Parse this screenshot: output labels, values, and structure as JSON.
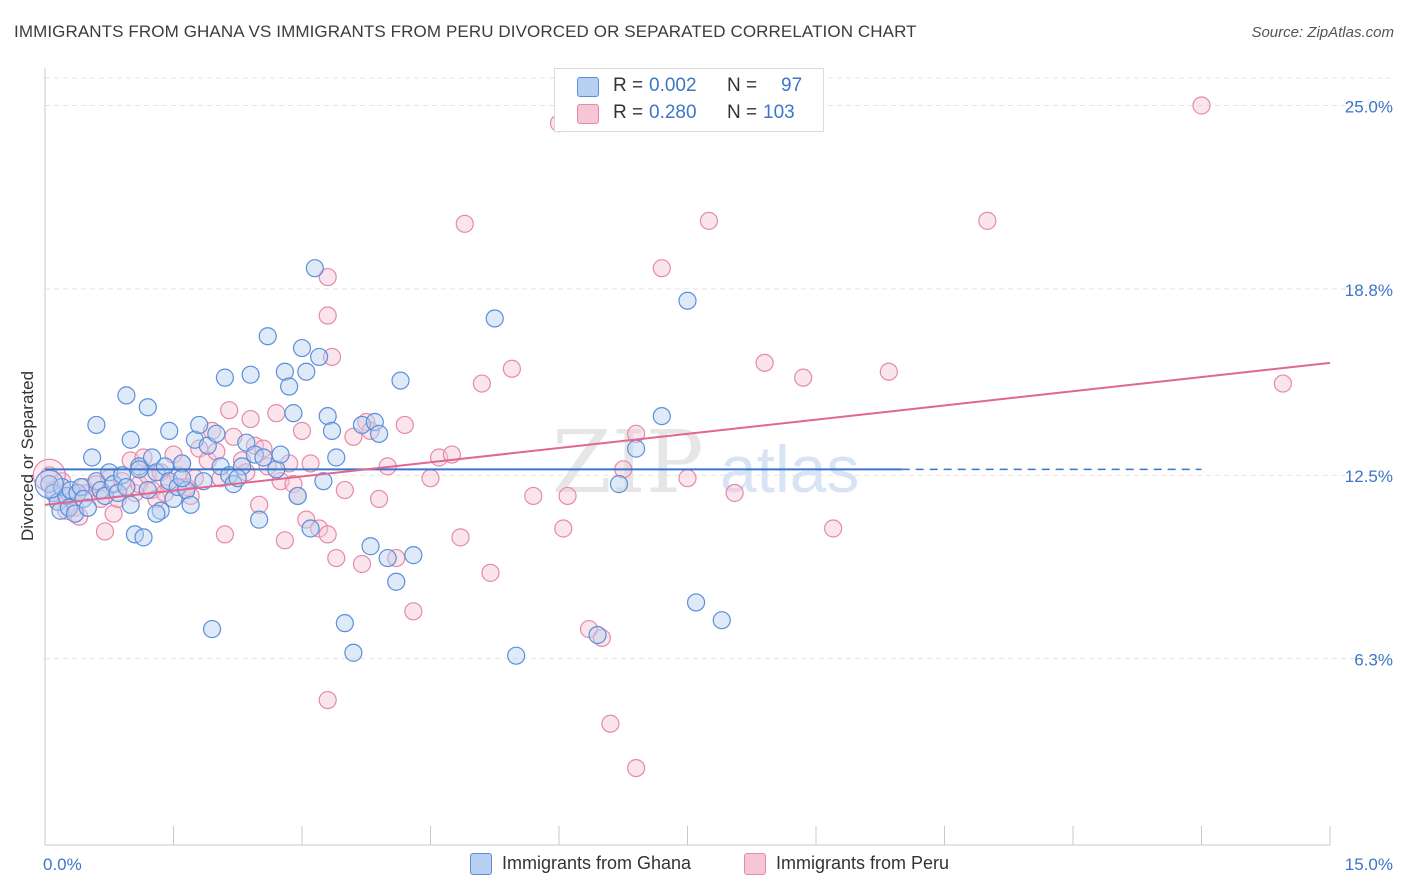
{
  "title": "IMMIGRANTS FROM GHANA VS IMMIGRANTS FROM PERU DIVORCED OR SEPARATED CORRELATION CHART",
  "source": "Source: ZipAtlas.com",
  "watermark": {
    "zip": "ZIP",
    "atlas": "atlas"
  },
  "legend": {
    "ghana": {
      "r_label": "R =",
      "r_value": "0.002",
      "n_label": "N =",
      "n_value": "97"
    },
    "peru": {
      "r_label": "R =",
      "r_value": "0.280",
      "n_label": "N =",
      "n_value": "103"
    }
  },
  "colors": {
    "ghana_fill": "#b8d0f2",
    "ghana_stroke": "#5b8fd9",
    "ghana_line": "#3a76cc",
    "peru_fill": "#f6c6d6",
    "peru_stroke": "#e58aa9",
    "peru_line": "#e0678f",
    "tick_label": "#3d75c8",
    "grid": "#e3e3e3"
  },
  "chart_data": {
    "type": "scatter",
    "title": "IMMIGRANTS FROM GHANA VS IMMIGRANTS FROM PERU DIVORCED OR SEPARATED CORRELATION CHART",
    "xlabel": "",
    "ylabel": "Divorced or Separated",
    "xlim": [
      0,
      15
    ],
    "ylim": [
      0,
      26.2
    ],
    "x_tick_labels": [
      "0.0%",
      "15.0%"
    ],
    "y_ticks": [
      6.3,
      12.5,
      18.8,
      25.0
    ],
    "y_tick_labels": [
      "6.3%",
      "12.5%",
      "18.8%",
      "25.0%"
    ],
    "grid": "horizontal dashed",
    "legend_position": "bottom",
    "series": [
      {
        "name": "Immigrants from Ghana",
        "trend": {
          "x": [
            0.0,
            10.0
          ],
          "y": [
            12.7,
            12.7
          ],
          "dashed_to_x": 13.5
        },
        "points": [
          [
            0.05,
            12.2
          ],
          [
            0.1,
            11.9
          ],
          [
            0.15,
            11.6
          ],
          [
            0.18,
            11.3
          ],
          [
            0.2,
            12.1
          ],
          [
            0.25,
            11.8
          ],
          [
            0.28,
            11.4
          ],
          [
            0.3,
            12.0
          ],
          [
            0.35,
            11.2
          ],
          [
            0.38,
            11.9
          ],
          [
            0.42,
            12.1
          ],
          [
            0.45,
            11.7
          ],
          [
            0.5,
            11.4
          ],
          [
            0.55,
            13.1
          ],
          [
            0.6,
            12.3
          ],
          [
            0.65,
            12.0
          ],
          [
            0.7,
            11.8
          ],
          [
            0.75,
            12.6
          ],
          [
            0.8,
            12.2
          ],
          [
            0.85,
            11.9
          ],
          [
            0.9,
            12.5
          ],
          [
            0.95,
            12.1
          ],
          [
            1.0,
            11.5
          ],
          [
            1.05,
            10.5
          ],
          [
            1.1,
            12.8
          ],
          [
            1.15,
            10.4
          ],
          [
            1.2,
            12.0
          ],
          [
            1.25,
            13.1
          ],
          [
            1.3,
            12.6
          ],
          [
            1.35,
            11.3
          ],
          [
            1.4,
            12.8
          ],
          [
            1.45,
            12.3
          ],
          [
            1.5,
            11.7
          ],
          [
            1.55,
            12.1
          ],
          [
            1.6,
            12.9
          ],
          [
            1.65,
            12.0
          ],
          [
            1.7,
            11.5
          ],
          [
            1.75,
            13.7
          ],
          [
            1.8,
            14.2
          ],
          [
            1.85,
            12.3
          ],
          [
            1.9,
            13.5
          ],
          [
            2.0,
            13.9
          ],
          [
            2.05,
            12.8
          ],
          [
            2.1,
            15.8
          ],
          [
            2.15,
            12.5
          ],
          [
            2.2,
            12.2
          ],
          [
            2.3,
            12.8
          ],
          [
            2.35,
            13.6
          ],
          [
            2.4,
            15.9
          ],
          [
            2.45,
            13.2
          ],
          [
            2.5,
            11.0
          ],
          [
            2.55,
            13.1
          ],
          [
            2.6,
            17.2
          ],
          [
            2.7,
            12.7
          ],
          [
            2.75,
            13.2
          ],
          [
            2.8,
            16.0
          ],
          [
            2.85,
            15.5
          ],
          [
            2.9,
            14.6
          ],
          [
            2.95,
            11.8
          ],
          [
            3.0,
            16.8
          ],
          [
            3.05,
            16.0
          ],
          [
            3.1,
            10.7
          ],
          [
            3.15,
            19.5
          ],
          [
            3.2,
            16.5
          ],
          [
            3.25,
            12.3
          ],
          [
            3.3,
            14.5
          ],
          [
            3.35,
            14.0
          ],
          [
            3.4,
            13.1
          ],
          [
            3.5,
            7.5
          ],
          [
            3.6,
            6.5
          ],
          [
            3.7,
            14.2
          ],
          [
            3.8,
            10.1
          ],
          [
            3.85,
            14.3
          ],
          [
            3.9,
            13.9
          ],
          [
            4.0,
            9.7
          ],
          [
            4.1,
            8.9
          ],
          [
            4.15,
            15.7
          ],
          [
            4.3,
            9.8
          ],
          [
            5.25,
            17.8
          ],
          [
            5.5,
            6.4
          ],
          [
            6.45,
            7.1
          ],
          [
            6.7,
            12.2
          ],
          [
            6.9,
            13.4
          ],
          [
            7.2,
            14.5
          ],
          [
            7.5,
            18.4
          ],
          [
            7.6,
            8.2
          ],
          [
            7.9,
            7.6
          ],
          [
            0.6,
            14.2
          ],
          [
            0.95,
            15.2
          ],
          [
            1.2,
            14.8
          ],
          [
            1.0,
            13.7
          ],
          [
            1.1,
            12.7
          ],
          [
            1.3,
            11.2
          ],
          [
            1.45,
            14.0
          ],
          [
            1.6,
            12.4
          ],
          [
            2.25,
            12.4
          ],
          [
            1.95,
            7.3
          ]
        ]
      },
      {
        "name": "Immigrants from Peru",
        "trend": {
          "x": [
            0.0,
            15.0
          ],
          "y": [
            11.5,
            16.3
          ]
        },
        "points": [
          [
            0.05,
            12.5
          ],
          [
            0.1,
            12.0
          ],
          [
            0.15,
            11.6
          ],
          [
            0.2,
            12.3
          ],
          [
            0.25,
            11.3
          ],
          [
            0.3,
            11.8
          ],
          [
            0.35,
            11.4
          ],
          [
            0.4,
            11.1
          ],
          [
            0.45,
            12.1
          ],
          [
            0.5,
            11.9
          ],
          [
            0.6,
            12.2
          ],
          [
            0.65,
            11.7
          ],
          [
            0.7,
            10.6
          ],
          [
            0.75,
            12.4
          ],
          [
            0.8,
            11.2
          ],
          [
            0.85,
            11.7
          ],
          [
            0.9,
            12.3
          ],
          [
            1.0,
            13.0
          ],
          [
            1.05,
            11.9
          ],
          [
            1.1,
            12.2
          ],
          [
            1.15,
            13.1
          ],
          [
            1.2,
            12.5
          ],
          [
            1.25,
            12.0
          ],
          [
            1.3,
            11.7
          ],
          [
            1.35,
            12.6
          ],
          [
            1.4,
            11.9
          ],
          [
            1.45,
            12.2
          ],
          [
            1.5,
            13.2
          ],
          [
            1.55,
            12.5
          ],
          [
            1.6,
            12.9
          ],
          [
            1.65,
            12.1
          ],
          [
            1.7,
            11.8
          ],
          [
            1.75,
            12.4
          ],
          [
            1.8,
            13.4
          ],
          [
            1.9,
            13.0
          ],
          [
            1.95,
            14.0
          ],
          [
            2.0,
            13.3
          ],
          [
            2.05,
            12.4
          ],
          [
            2.1,
            10.5
          ],
          [
            2.15,
            14.7
          ],
          [
            2.2,
            13.8
          ],
          [
            2.3,
            13.0
          ],
          [
            2.35,
            12.6
          ],
          [
            2.4,
            14.4
          ],
          [
            2.45,
            13.5
          ],
          [
            2.5,
            11.5
          ],
          [
            2.55,
            13.4
          ],
          [
            2.6,
            12.8
          ],
          [
            2.7,
            14.6
          ],
          [
            2.75,
            12.3
          ],
          [
            2.8,
            10.3
          ],
          [
            2.85,
            12.9
          ],
          [
            2.9,
            12.2
          ],
          [
            2.95,
            11.8
          ],
          [
            3.0,
            14.0
          ],
          [
            3.05,
            11.0
          ],
          [
            3.1,
            12.9
          ],
          [
            3.2,
            10.7
          ],
          [
            3.3,
            10.5
          ],
          [
            3.35,
            16.5
          ],
          [
            3.4,
            9.7
          ],
          [
            3.5,
            12.0
          ],
          [
            3.6,
            13.8
          ],
          [
            3.7,
            9.5
          ],
          [
            3.75,
            14.3
          ],
          [
            3.8,
            14.0
          ],
          [
            3.9,
            11.7
          ],
          [
            4.0,
            12.8
          ],
          [
            4.1,
            9.7
          ],
          [
            4.2,
            14.2
          ],
          [
            4.3,
            7.9
          ],
          [
            4.5,
            12.4
          ],
          [
            4.6,
            13.1
          ],
          [
            4.75,
            13.2
          ],
          [
            4.85,
            10.4
          ],
          [
            4.9,
            21.0
          ],
          [
            5.1,
            15.6
          ],
          [
            5.2,
            9.2
          ],
          [
            5.45,
            16.1
          ],
          [
            5.7,
            11.8
          ],
          [
            6.0,
            24.4
          ],
          [
            6.05,
            10.7
          ],
          [
            6.1,
            11.8
          ],
          [
            6.35,
            7.3
          ],
          [
            6.5,
            7.0
          ],
          [
            6.6,
            4.1
          ],
          [
            6.75,
            12.7
          ],
          [
            6.9,
            2.6
          ],
          [
            7.2,
            19.5
          ],
          [
            7.5,
            12.4
          ],
          [
            7.75,
            21.1
          ],
          [
            8.05,
            11.9
          ],
          [
            8.4,
            16.3
          ],
          [
            8.85,
            15.8
          ],
          [
            9.2,
            10.7
          ],
          [
            9.85,
            16.0
          ],
          [
            11.0,
            21.1
          ],
          [
            13.5,
            25.0
          ],
          [
            14.45,
            15.6
          ],
          [
            3.3,
            4.9
          ],
          [
            3.3,
            19.2
          ],
          [
            3.3,
            17.9
          ],
          [
            6.9,
            13.9
          ]
        ]
      }
    ]
  },
  "bottom_legend": {
    "ghana_label": "Immigrants from Ghana",
    "peru_label": "Immigrants from Peru"
  }
}
